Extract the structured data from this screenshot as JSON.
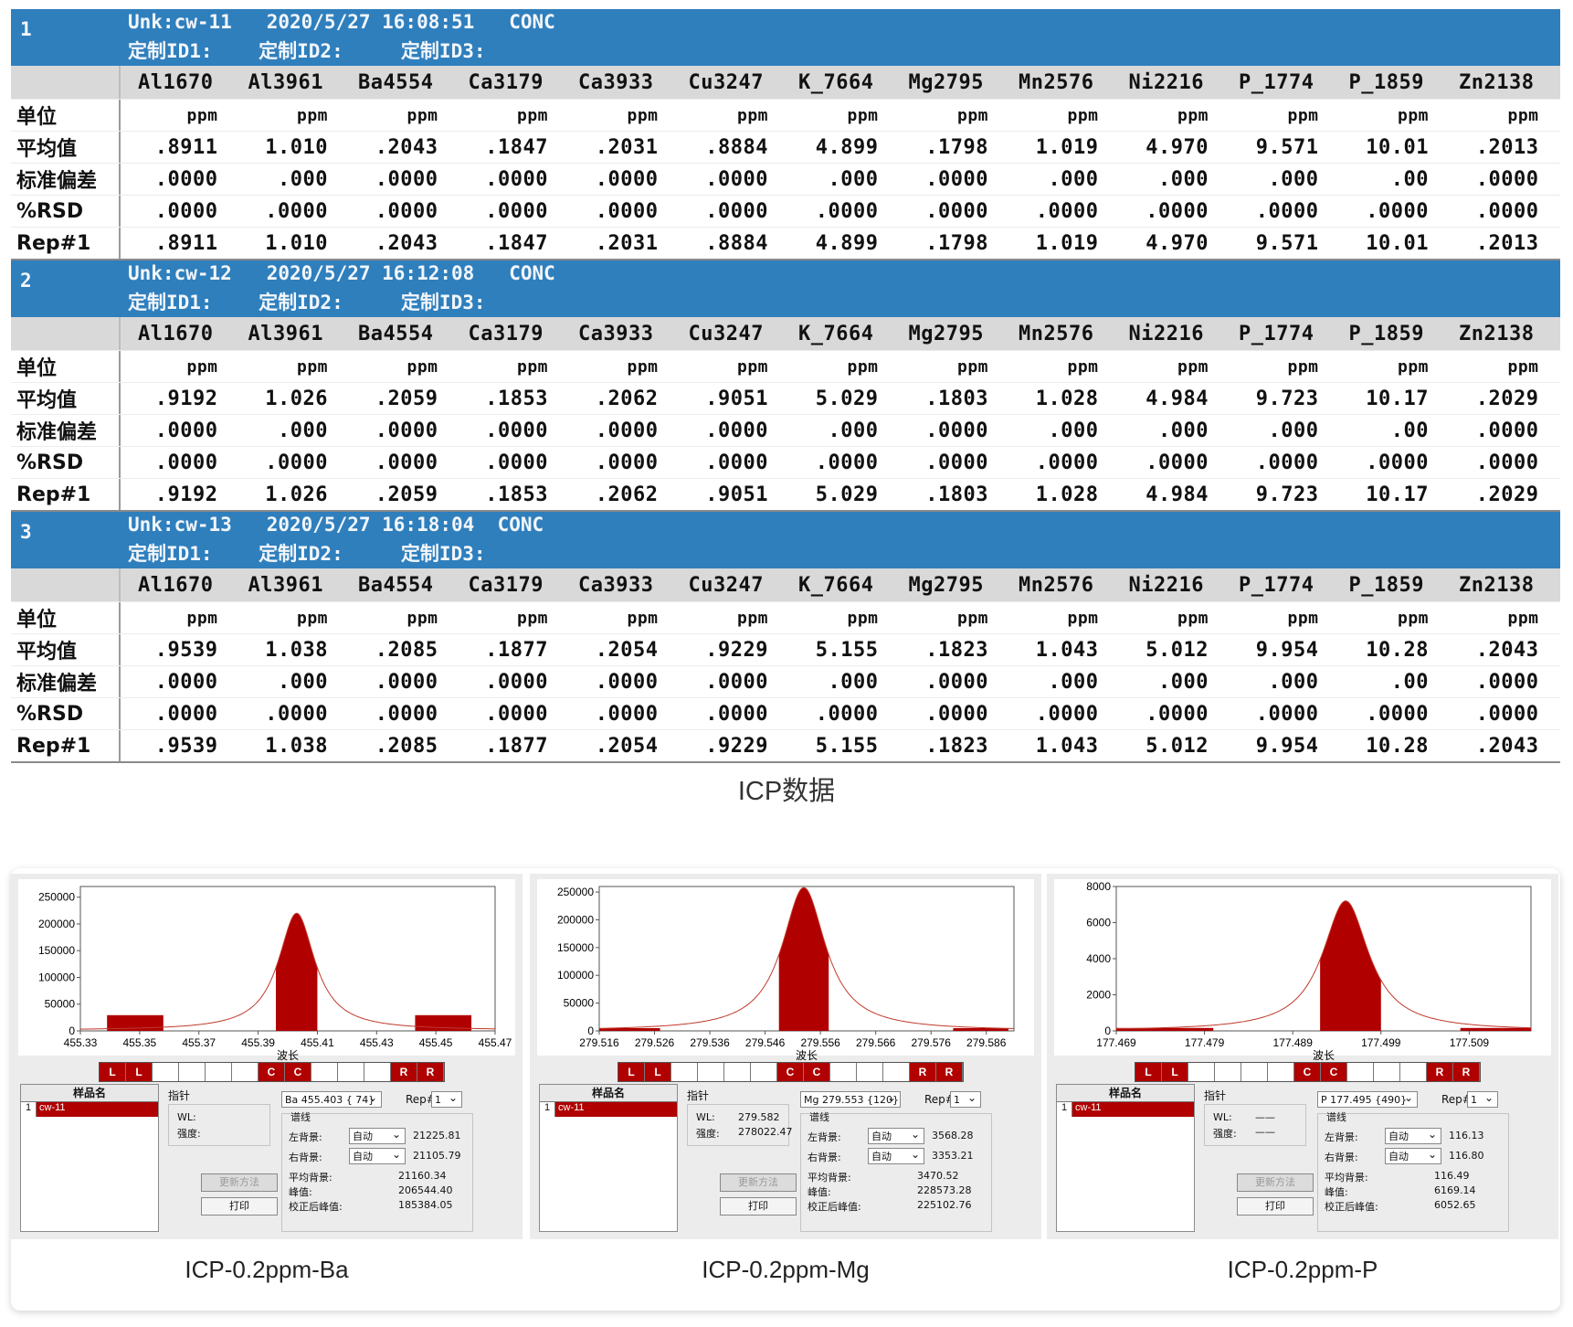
{
  "columns": [
    "Al1670",
    "Al3961",
    "Ba4554",
    "Ca3179",
    "Ca3933",
    "Cu3247",
    "K_7664",
    "Mg2795",
    "Mn2576",
    "Ni2216",
    "P_1774",
    "P_1859",
    "Zn2138"
  ],
  "row_labels": {
    "unit": "单位",
    "mean": "平均值",
    "sd": "标准偏差",
    "rsd": "%RSD",
    "rep": "Rep#1"
  },
  "samples": [
    {
      "num": "1",
      "line1": "Unk:cw-11   2020/5/27 16:08:51   CONC",
      "line2": "定制ID1:    定制ID2:     定制ID3:",
      "unit": [
        "ppm",
        "ppm",
        "ppm",
        "ppm",
        "ppm",
        "ppm",
        "ppm",
        "ppm",
        "ppm",
        "ppm",
        "ppm",
        "ppm",
        "ppm"
      ],
      "mean": [
        ".8911",
        "1.010",
        ".2043",
        ".1847",
        ".2031",
        ".8884",
        "4.899",
        ".1798",
        "1.019",
        "4.970",
        "9.571",
        "10.01",
        ".2013"
      ],
      "sd": [
        ".0000",
        ".000",
        ".0000",
        ".0000",
        ".0000",
        ".0000",
        ".000",
        ".0000",
        ".000",
        ".000",
        ".000",
        ".00",
        ".0000"
      ],
      "rsd": [
        ".0000",
        ".0000",
        ".0000",
        ".0000",
        ".0000",
        ".0000",
        ".0000",
        ".0000",
        ".0000",
        ".0000",
        ".0000",
        ".0000",
        ".0000"
      ],
      "rep": [
        ".8911",
        "1.010",
        ".2043",
        ".1847",
        ".2031",
        ".8884",
        "4.899",
        ".1798",
        "1.019",
        "4.970",
        "9.571",
        "10.01",
        ".2013"
      ]
    },
    {
      "num": "2",
      "line1": "Unk:cw-12   2020/5/27 16:12:08   CONC",
      "line2": "定制ID1:    定制ID2:     定制ID3:",
      "unit": [
        "ppm",
        "ppm",
        "ppm",
        "ppm",
        "ppm",
        "ppm",
        "ppm",
        "ppm",
        "ppm",
        "ppm",
        "ppm",
        "ppm",
        "ppm"
      ],
      "mean": [
        ".9192",
        "1.026",
        ".2059",
        ".1853",
        ".2062",
        ".9051",
        "5.029",
        ".1803",
        "1.028",
        "4.984",
        "9.723",
        "10.17",
        ".2029"
      ],
      "sd": [
        ".0000",
        ".000",
        ".0000",
        ".0000",
        ".0000",
        ".0000",
        ".000",
        ".0000",
        ".000",
        ".000",
        ".000",
        ".00",
        ".0000"
      ],
      "rsd": [
        ".0000",
        ".0000",
        ".0000",
        ".0000",
        ".0000",
        ".0000",
        ".0000",
        ".0000",
        ".0000",
        ".0000",
        ".0000",
        ".0000",
        ".0000"
      ],
      "rep": [
        ".9192",
        "1.026",
        ".2059",
        ".1853",
        ".2062",
        ".9051",
        "5.029",
        ".1803",
        "1.028",
        "4.984",
        "9.723",
        "10.17",
        ".2029"
      ]
    },
    {
      "num": "3",
      "line1": "Unk:cw-13   2020/5/27 16:18:04  CONC",
      "line2": "定制ID1:    定制ID2:     定制ID3:",
      "unit": [
        "ppm",
        "ppm",
        "ppm",
        "ppm",
        "ppm",
        "ppm",
        "ppm",
        "ppm",
        "ppm",
        "ppm",
        "ppm",
        "ppm",
        "ppm"
      ],
      "mean": [
        ".9539",
        "1.038",
        ".2085",
        ".1877",
        ".2054",
        ".9229",
        "5.155",
        ".1823",
        "1.043",
        "5.012",
        "9.954",
        "10.28",
        ".2043"
      ],
      "sd": [
        ".0000",
        ".000",
        ".0000",
        ".0000",
        ".0000",
        ".0000",
        ".000",
        ".0000",
        ".000",
        ".000",
        ".000",
        ".00",
        ".0000"
      ],
      "rsd": [
        ".0000",
        ".0000",
        ".0000",
        ".0000",
        ".0000",
        ".0000",
        ".0000",
        ".0000",
        ".0000",
        ".0000",
        ".0000",
        ".0000",
        ".0000"
      ],
      "rep": [
        ".9539",
        "1.038",
        ".2085",
        ".1877",
        ".2054",
        ".9229",
        "5.155",
        ".1823",
        "1.043",
        "5.012",
        "9.954",
        "10.28",
        ".2043"
      ]
    }
  ],
  "icp_caption": "ICP数据",
  "common": {
    "sample_header": "样品名",
    "sample_idx": "1",
    "sample_name": "cw-11",
    "pointer_label": "指针",
    "wl_label": "WL:",
    "intensity_label": "强度:",
    "spectral_group": "谱线",
    "left_bg": "左背景:",
    "right_bg": "右背景:",
    "avg_bg": "平均背景:",
    "peak": "峰值:",
    "corrected_peak": "校正后峰值:",
    "auto": "自动",
    "update_btn": "更新方法",
    "print_btn": "打印",
    "rep_label": "Rep#",
    "rep_value": "1",
    "wavelength_label": "波长",
    "llcc": [
      "L",
      "L",
      "",
      "",
      "",
      "",
      "C",
      "C",
      "",
      "",
      "",
      "R",
      "R"
    ],
    "peak_color": "#b00000"
  },
  "panels": [
    {
      "caption": "ICP-0.2ppm-Ba",
      "line_select": "Ba 455.403 { 74}",
      "wl": "",
      "intensity": "",
      "left_bg": "21225.81",
      "right_bg": "21105.79",
      "avg_bg": "21160.34",
      "peak": "206544.40",
      "corrected_peak": "185384.05",
      "chart_data": {
        "type": "area",
        "x_ticks": [
          "455.33",
          "455.35",
          "455.37",
          "455.39",
          "455.41",
          "455.43",
          "455.45",
          "455.47"
        ],
        "xlim": [
          455.33,
          455.47
        ],
        "y_ticks": [
          "0",
          "50000",
          "100000",
          "150000",
          "200000",
          "250000"
        ],
        "ylim": [
          0,
          270000
        ],
        "peak_center": 455.403,
        "peak_height": 220000,
        "baseline": 21000,
        "half_width": 0.0075,
        "shade_range": [
          455.396,
          455.41
        ],
        "bg_left": [
          455.339,
          455.358
        ],
        "bg_right": [
          455.443,
          455.462
        ]
      }
    },
    {
      "caption": "ICP-0.2ppm-Mg",
      "line_select": "Mg 279.553 {120}",
      "wl": "279.582",
      "intensity": "278022.47",
      "left_bg": "3568.28",
      "right_bg": "3353.21",
      "avg_bg": "3470.52",
      "peak": "228573.28",
      "corrected_peak": "225102.76",
      "chart_data": {
        "type": "area",
        "x_ticks": [
          "279.516",
          "279.526",
          "279.536",
          "279.546",
          "279.556",
          "279.566",
          "279.576",
          "279.586"
        ],
        "xlim": [
          279.516,
          279.591
        ],
        "y_ticks": [
          "0",
          "50000",
          "100000",
          "150000",
          "200000",
          "250000"
        ],
        "ylim": [
          0,
          260000
        ],
        "peak_center": 279.553,
        "peak_height": 258000,
        "baseline": 3470,
        "half_width": 0.0048,
        "shade_range": [
          279.5485,
          279.5575
        ],
        "bg_left": [
          279.516,
          279.527
        ],
        "bg_right": [
          279.58,
          279.59
        ]
      }
    },
    {
      "caption": "ICP-0.2ppm-P",
      "line_select": "P 177.495 {490}",
      "wl": "——",
      "intensity": "——",
      "left_bg": "116.13",
      "right_bg": "116.80",
      "avg_bg": "116.49",
      "peak": "6169.14",
      "corrected_peak": "6052.65",
      "chart_data": {
        "type": "area",
        "x_ticks": [
          "177.469",
          "177.479",
          "177.489",
          "177.499",
          "177.509"
        ],
        "xlim": [
          177.469,
          177.516
        ],
        "y_ticks": [
          "0",
          "2000",
          "4000",
          "6000",
          "8000"
        ],
        "ylim": [
          0,
          8000
        ],
        "peak_center": 177.495,
        "peak_height": 7200,
        "baseline": 116,
        "half_width": 0.0032,
        "shade_range": [
          177.4921,
          177.499
        ],
        "bg_left": [
          177.469,
          177.48
        ],
        "bg_right": [
          177.508,
          177.516
        ]
      }
    }
  ]
}
